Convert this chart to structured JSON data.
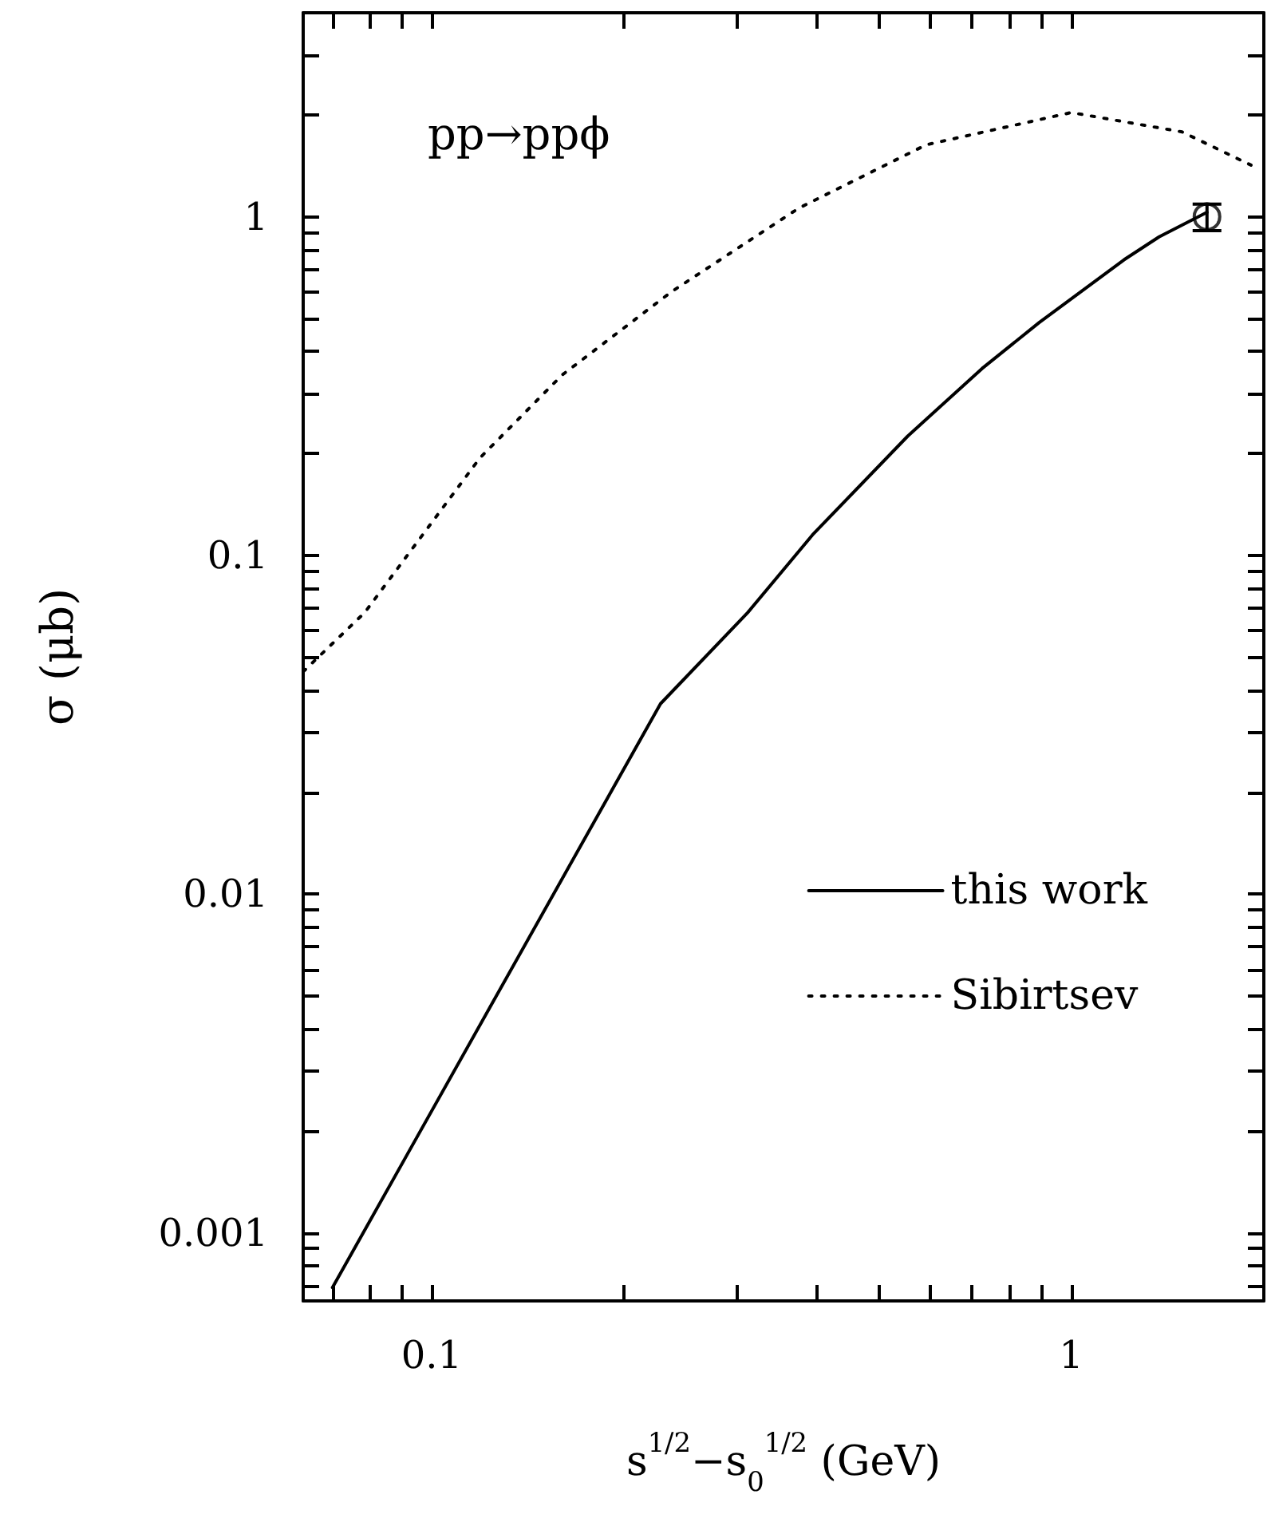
{
  "chart_data": {
    "type": "line",
    "xlabel": "s$^{1/2}$−s$_{0}$$^{1/2}$ (GeV)",
    "ylabel": "σ (μb)",
    "annotations": [
      "pp→ppϕ"
    ],
    "log": "xy",
    "grid": false,
    "legend": "right",
    "xlim": [
      0.063,
      2
    ],
    "ylim": [
      0.00063,
      4
    ],
    "xticks": [
      {
        "value": 0.07,
        "label": null
      },
      {
        "value": 0.08,
        "label": null
      },
      {
        "value": 0.09,
        "label": null
      },
      0.1,
      {
        "value": 0.2,
        "label": null
      },
      {
        "value": 0.3,
        "label": null
      },
      {
        "value": 0.4,
        "label": null
      },
      {
        "value": 0.5,
        "label": null
      },
      {
        "value": 0.6,
        "label": null
      },
      {
        "value": 0.7,
        "label": null
      },
      {
        "value": 0.8,
        "label": null
      },
      {
        "value": 0.9,
        "label": null
      },
      1,
      {
        "value": 2,
        "label": null
      }
    ],
    "yticks": [
      {
        "value": 0.0007,
        "label": null
      },
      {
        "value": 0.0008,
        "label": null
      },
      {
        "value": 0.0009,
        "label": null
      },
      0.001,
      {
        "value": 0.002,
        "label": null
      },
      {
        "value": 0.003,
        "label": null
      },
      {
        "value": 0.004,
        "label": null
      },
      {
        "value": 0.005,
        "label": null
      },
      {
        "value": 0.006,
        "label": null
      },
      {
        "value": 0.007,
        "label": null
      },
      {
        "value": 0.008,
        "label": null
      },
      {
        "value": 0.009,
        "label": null
      },
      0.01,
      {
        "value": 0.02,
        "label": null
      },
      {
        "value": 0.03,
        "label": null
      },
      {
        "value": 0.04,
        "label": null
      },
      {
        "value": 0.05,
        "label": null
      },
      {
        "value": 0.06,
        "label": null
      },
      {
        "value": 0.07,
        "label": null
      },
      {
        "value": 0.08,
        "label": null
      },
      {
        "value": 0.09,
        "label": null
      },
      0.1,
      {
        "value": 0.2,
        "label": null
      },
      {
        "value": 0.3,
        "label": null
      },
      {
        "value": 0.4,
        "label": null
      },
      {
        "value": 0.5,
        "label": null
      },
      {
        "value": 0.6,
        "label": null
      },
      {
        "value": 0.7,
        "label": null
      },
      {
        "value": 0.8,
        "label": null
      },
      {
        "value": 0.9,
        "label": null
      },
      1,
      {
        "value": 2,
        "label": null
      },
      {
        "value": 3,
        "label": null
      }
    ],
    "series": [
      {
        "name": "this work",
        "color": "#000000",
        "line_style": "solid",
        "marker": "none",
        "x": [
          0.07,
          0.228,
          0.312,
          0.394,
          0.555,
          0.725,
          0.891,
          1.209,
          1.372,
          1.63
        ],
        "values": [
          0.00069,
          0.0365,
          0.0678,
          0.115,
          0.225,
          0.356,
          0.487,
          0.746,
          0.872,
          1.03
        ]
      },
      {
        "name": "Sibirtsev",
        "color": "#000000",
        "line_style": "dotted",
        "marker": "none",
        "x": [
          0.063,
          0.0786,
          0.119,
          0.16,
          0.237,
          0.375,
          0.593,
          1.0,
          1.49,
          1.91
        ],
        "values": [
          0.0454,
          0.0678,
          0.194,
          0.341,
          0.6,
          1.06,
          1.63,
          2.03,
          1.78,
          1.42
        ]
      },
      {
        "color": "#000000",
        "type": "scatter",
        "marker": "circle",
        "x": [
          1.63
        ],
        "values": [
          1.0
        ],
        "errors": [
          0.09
        ]
      }
    ]
  }
}
